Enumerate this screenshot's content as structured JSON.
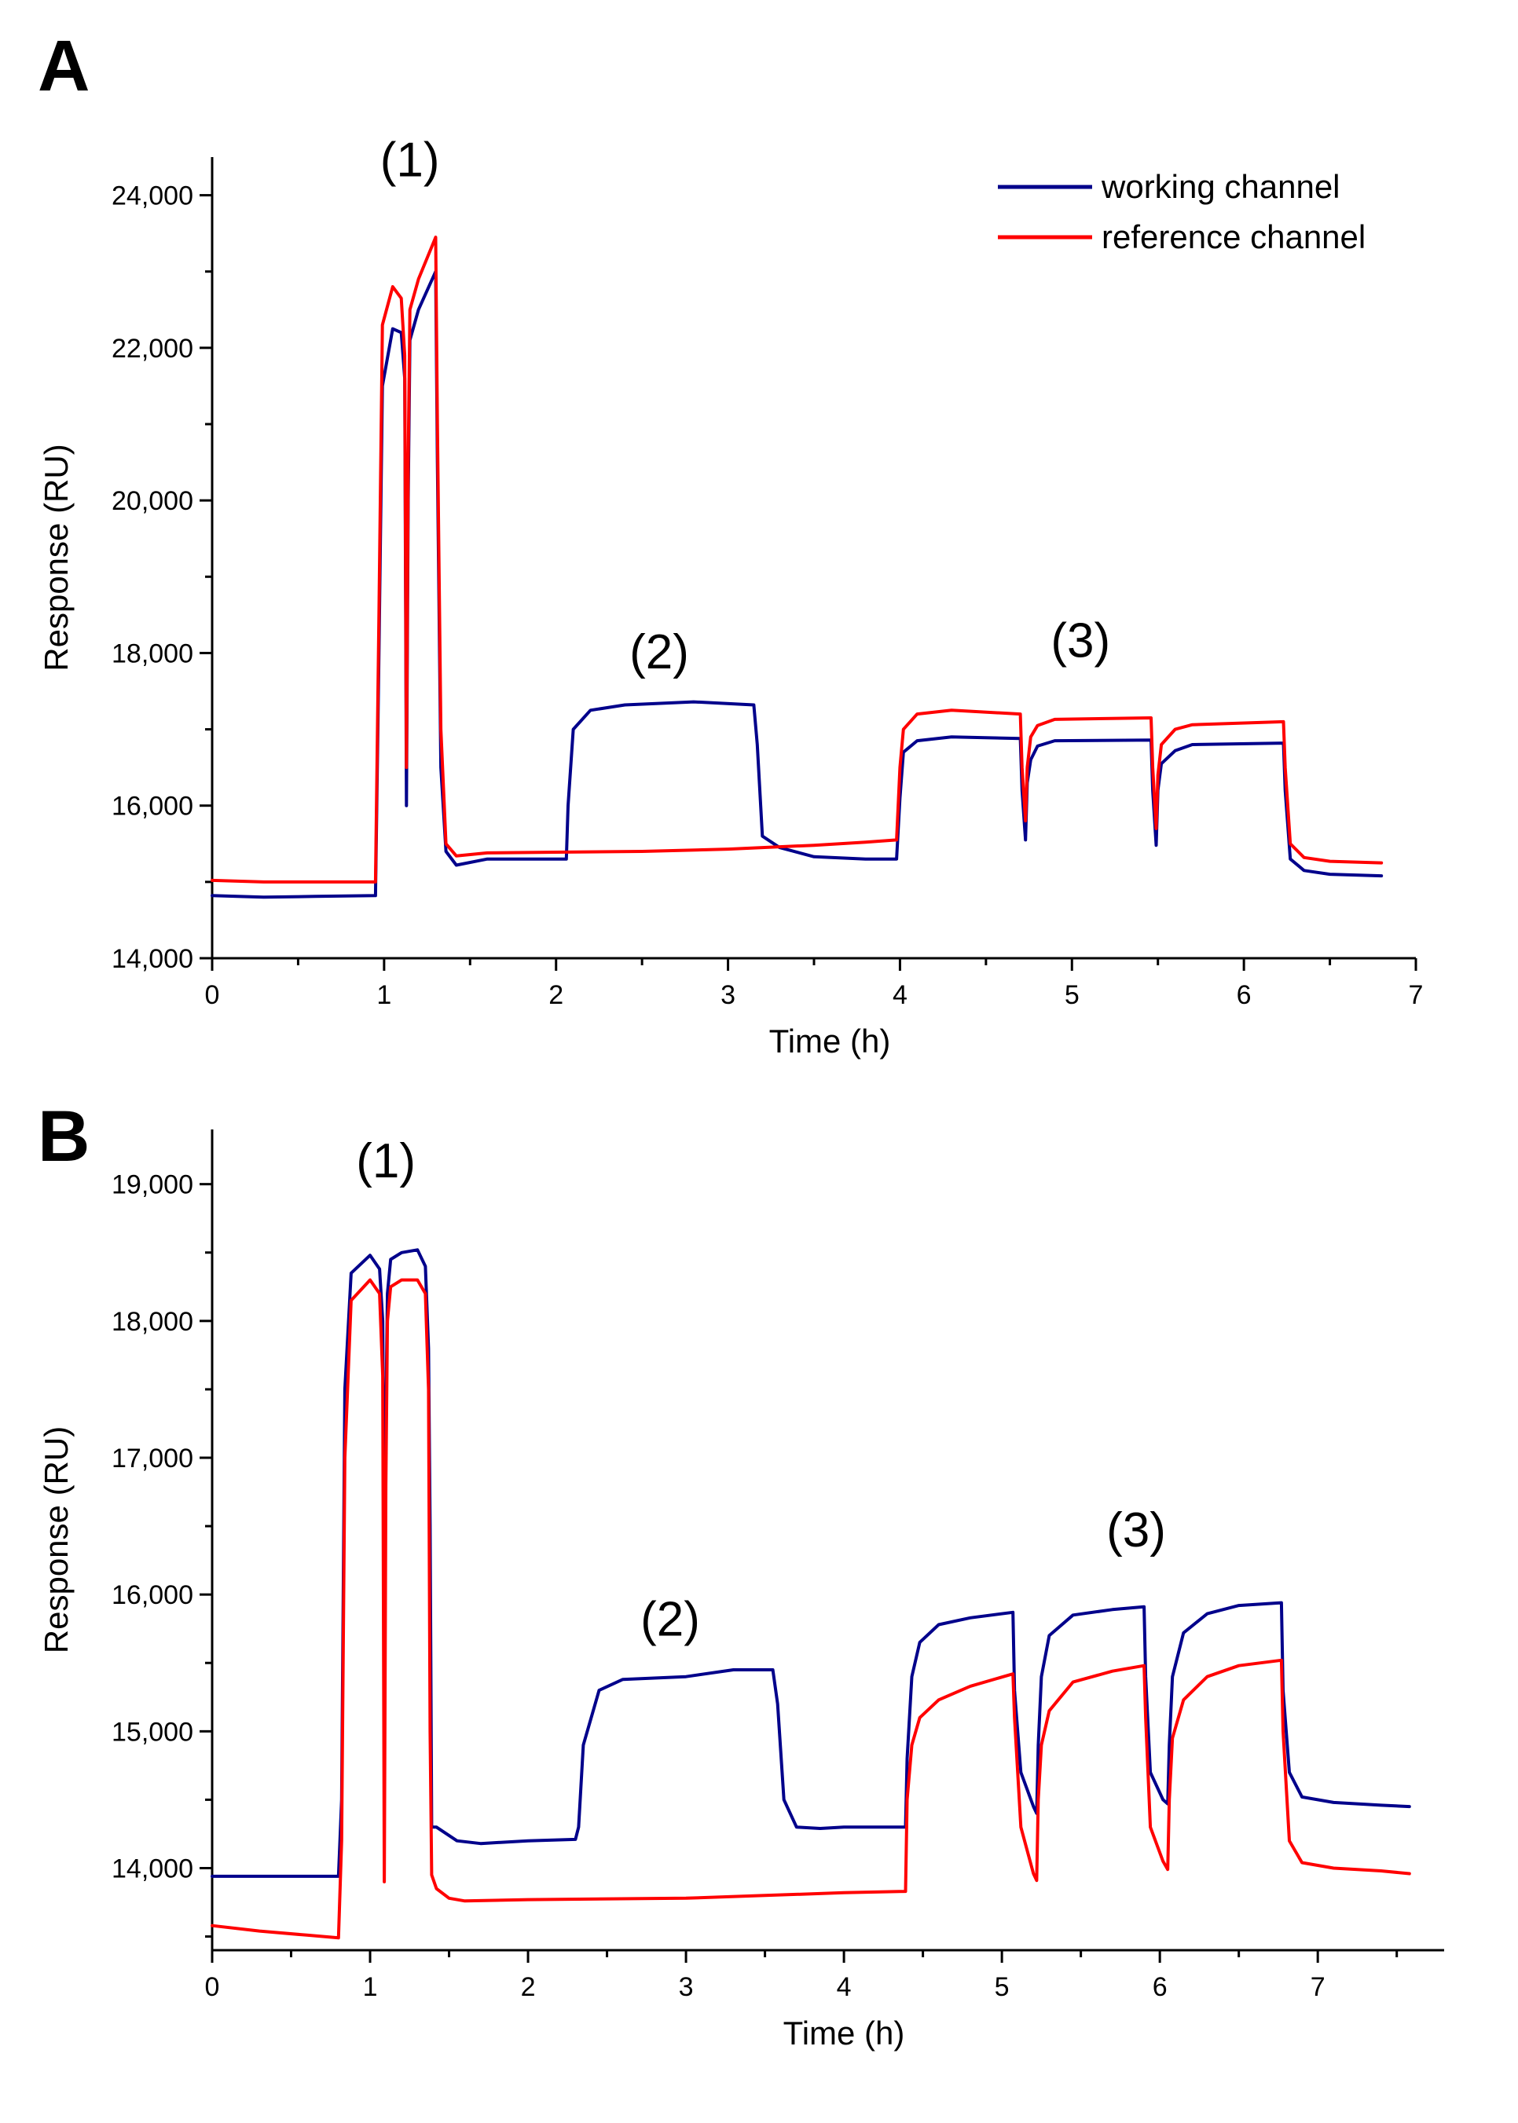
{
  "chart_data": [
    {
      "type": "line",
      "panel": "A",
      "title": "",
      "xlabel": "Time (h)",
      "ylabel": "Response (RU)",
      "xlim": [
        0,
        7
      ],
      "ylim": [
        14000,
        24500
      ],
      "xticks": [
        0,
        1,
        2,
        3,
        4,
        5,
        6,
        7
      ],
      "xtick_labels": [
        "0",
        "1",
        "2",
        "3",
        "4",
        "5",
        "6",
        "7"
      ],
      "yticks": [
        14000,
        16000,
        18000,
        20000,
        22000,
        24000
      ],
      "ytick_labels": [
        "14,000",
        "16,000",
        "18,000",
        "20,000",
        "22,000",
        "24,000"
      ],
      "legend": {
        "placement": "top-right",
        "entries": [
          "working channel",
          "reference channel"
        ]
      },
      "annotations": [
        {
          "text": "(1)",
          "x": 1.15,
          "y": 24250
        },
        {
          "text": "(2)",
          "x": 2.6,
          "y": 17800
        },
        {
          "text": "(3)",
          "x": 5.05,
          "y": 17950
        }
      ],
      "series": [
        {
          "name": "working channel",
          "color": "#00008B",
          "x": [
            0,
            0.3,
            0.6,
            0.95,
            0.97,
            0.99,
            1.05,
            1.1,
            1.12,
            1.13,
            1.14,
            1.15,
            1.2,
            1.3,
            1.31,
            1.33,
            1.36,
            1.42,
            1.6,
            2.06,
            2.07,
            2.1,
            2.2,
            2.4,
            2.8,
            3.15,
            3.17,
            3.2,
            3.3,
            3.5,
            3.8,
            3.98,
            4.0,
            4.02,
            4.1,
            4.3,
            4.7,
            4.71,
            4.73,
            4.74,
            4.76,
            4.8,
            4.9,
            5.46,
            5.47,
            5.49,
            5.5,
            5.52,
            5.6,
            5.7,
            6.23,
            6.24,
            6.27,
            6.35,
            6.5,
            6.8
          ],
          "values": [
            14820,
            14800,
            14810,
            14820,
            18000,
            21500,
            22250,
            22200,
            21600,
            16000,
            20000,
            22100,
            22500,
            23000,
            20500,
            16500,
            15400,
            15220,
            15300,
            15300,
            16000,
            17000,
            17250,
            17320,
            17360,
            17320,
            16800,
            15600,
            15450,
            15330,
            15300,
            15300,
            16100,
            16700,
            16850,
            16900,
            16880,
            16200,
            15550,
            16300,
            16600,
            16780,
            16850,
            16860,
            16200,
            15480,
            16200,
            16550,
            16720,
            16800,
            16820,
            16200,
            15300,
            15150,
            15100,
            15080
          ]
        },
        {
          "name": "reference channel",
          "color": "#FF0000",
          "x": [
            0,
            0.3,
            0.6,
            0.95,
            0.97,
            0.99,
            1.05,
            1.1,
            1.12,
            1.13,
            1.14,
            1.15,
            1.2,
            1.3,
            1.31,
            1.33,
            1.36,
            1.42,
            1.6,
            2.0,
            2.5,
            3.0,
            3.5,
            3.8,
            3.98,
            4.0,
            4.02,
            4.1,
            4.3,
            4.7,
            4.71,
            4.73,
            4.74,
            4.76,
            4.8,
            4.9,
            5.46,
            5.47,
            5.49,
            5.5,
            5.52,
            5.6,
            5.7,
            6.23,
            6.24,
            6.27,
            6.35,
            6.5,
            6.8
          ],
          "values": [
            15020,
            15000,
            15000,
            15000,
            18500,
            22300,
            22800,
            22650,
            21900,
            16500,
            20500,
            22500,
            22900,
            23450,
            21000,
            17000,
            15500,
            15340,
            15380,
            15390,
            15400,
            15430,
            15480,
            15520,
            15550,
            16500,
            17000,
            17200,
            17250,
            17200,
            16500,
            15800,
            16500,
            16900,
            17050,
            17130,
            17150,
            16500,
            15700,
            16400,
            16800,
            17000,
            17060,
            17100,
            16500,
            15500,
            15320,
            15270,
            15250
          ]
        }
      ]
    },
    {
      "type": "line",
      "panel": "B",
      "title": "",
      "xlabel": "Time (h)",
      "ylabel": "Response (RU)",
      "xlim": [
        0,
        7.8
      ],
      "ylim": [
        13400,
        19400
      ],
      "xticks": [
        0,
        1,
        2,
        3,
        4,
        5,
        6,
        7
      ],
      "xtick_labels": [
        "0",
        "1",
        "2",
        "3",
        "4",
        "5",
        "6",
        "7"
      ],
      "yticks": [
        14000,
        15000,
        16000,
        17000,
        18000,
        19000
      ],
      "ytick_labels": [
        "14,000",
        "15,000",
        "16,000",
        "17,000",
        "18,000",
        "19,000"
      ],
      "annotations": [
        {
          "text": "(1)",
          "x": 1.1,
          "y": 19050
        },
        {
          "text": "(2)",
          "x": 2.9,
          "y": 15700
        },
        {
          "text": "(3)",
          "x": 5.85,
          "y": 16350
        }
      ],
      "series": [
        {
          "name": "working channel",
          "color": "#00008B",
          "x": [
            0,
            0.8,
            0.82,
            0.84,
            0.88,
            1.0,
            1.06,
            1.08,
            1.09,
            1.1,
            1.11,
            1.13,
            1.2,
            1.3,
            1.35,
            1.37,
            1.38,
            1.39,
            1.42,
            1.55,
            1.7,
            2.0,
            2.3,
            2.32,
            2.35,
            2.45,
            2.6,
            3.0,
            3.3,
            3.55,
            3.58,
            3.62,
            3.7,
            3.85,
            4.0,
            4.39,
            4.4,
            4.43,
            4.48,
            4.6,
            4.8,
            5.07,
            5.08,
            5.12,
            5.2,
            5.22,
            5.23,
            5.25,
            5.3,
            5.45,
            5.7,
            5.9,
            5.91,
            5.94,
            6.02,
            6.05,
            6.06,
            6.08,
            6.15,
            6.3,
            6.5,
            6.77,
            6.78,
            6.82,
            6.9,
            7.1,
            7.4,
            7.58
          ],
          "values": [
            13940,
            13940,
            14500,
            17500,
            18350,
            18480,
            18380,
            18000,
            16100,
            17300,
            18200,
            18450,
            18500,
            18520,
            18400,
            17800,
            16500,
            14300,
            14300,
            14200,
            14180,
            14200,
            14210,
            14300,
            14900,
            15300,
            15380,
            15400,
            15450,
            15450,
            15200,
            14500,
            14300,
            14290,
            14300,
            14300,
            14800,
            15400,
            15650,
            15780,
            15830,
            15870,
            15300,
            14700,
            14450,
            14400,
            14900,
            15400,
            15700,
            15850,
            15890,
            15910,
            15400,
            14700,
            14500,
            14470,
            14900,
            15400,
            15720,
            15860,
            15920,
            15940,
            15300,
            14700,
            14520,
            14480,
            14460,
            14450
          ]
        },
        {
          "name": "reference channel",
          "color": "#FF0000",
          "x": [
            0,
            0.3,
            0.6,
            0.8,
            0.82,
            0.84,
            0.88,
            1.0,
            1.06,
            1.08,
            1.09,
            1.1,
            1.11,
            1.13,
            1.2,
            1.3,
            1.35,
            1.37,
            1.38,
            1.39,
            1.42,
            1.5,
            1.6,
            2.0,
            3.0,
            3.5,
            4.0,
            4.39,
            4.4,
            4.43,
            4.48,
            4.6,
            4.8,
            5.07,
            5.08,
            5.12,
            5.2,
            5.22,
            5.23,
            5.25,
            5.3,
            5.45,
            5.7,
            5.9,
            5.91,
            5.94,
            6.02,
            6.05,
            6.06,
            6.08,
            6.15,
            6.3,
            6.5,
            6.77,
            6.78,
            6.82,
            6.9,
            7.1,
            7.4,
            7.58
          ],
          "values": [
            13580,
            13540,
            13510,
            13490,
            14200,
            17000,
            18150,
            18300,
            18200,
            17600,
            13900,
            16800,
            18000,
            18250,
            18300,
            18300,
            18200,
            17500,
            15000,
            13950,
            13850,
            13780,
            13760,
            13770,
            13780,
            13800,
            13820,
            13830,
            14500,
            14900,
            15100,
            15230,
            15330,
            15420,
            15100,
            14300,
            13960,
            13910,
            14500,
            14900,
            15150,
            15360,
            15440,
            15480,
            15100,
            14300,
            14050,
            13990,
            14500,
            14950,
            15230,
            15400,
            15480,
            15520,
            15000,
            14200,
            14040,
            14000,
            13980,
            13960
          ]
        }
      ]
    }
  ],
  "panels": {
    "a": {
      "letter": "A"
    },
    "b": {
      "letter": "B"
    }
  }
}
